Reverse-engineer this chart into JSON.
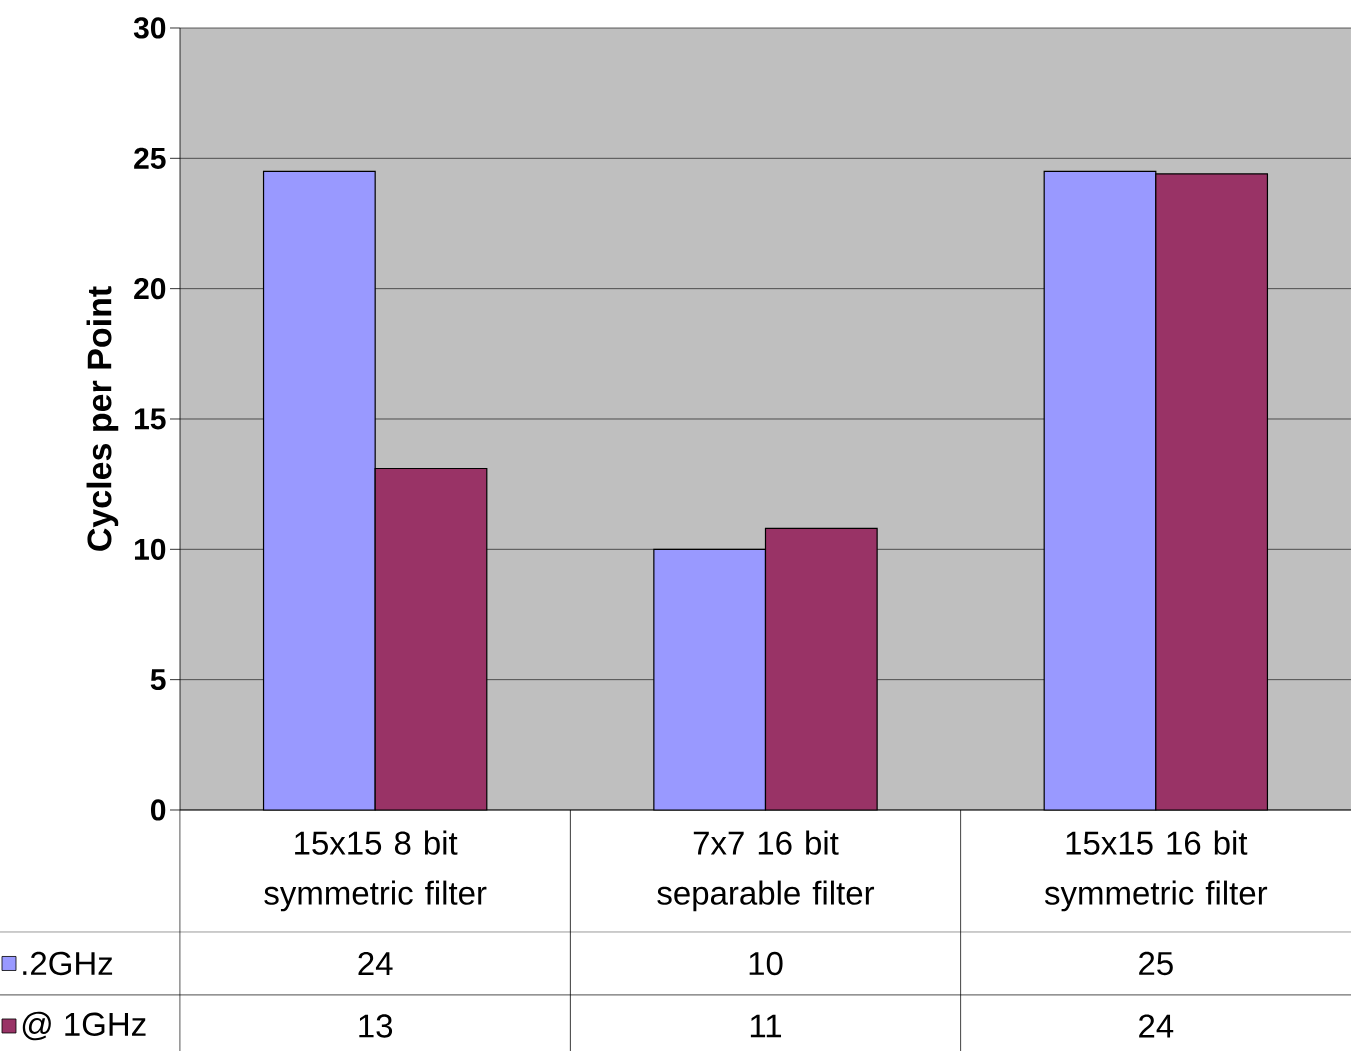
{
  "chart_data": {
    "type": "bar",
    "ylabel": "Cycles per Point",
    "categories": [
      "15x15 8 bit symmetric filter",
      "7x7 16 bit separable filter",
      "15x15 16 bit symmetric filter"
    ],
    "series": [
      {
        "name": ".2GHz",
        "color": "#9999ff",
        "values": [
          24.5,
          10.0,
          24.5
        ],
        "value_labels": [
          "24",
          "10",
          "25"
        ]
      },
      {
        "name": "@ 1GHz",
        "color": "#993366",
        "values": [
          13.1,
          10.8,
          24.4
        ],
        "value_labels": [
          "13",
          "11",
          "24"
        ]
      }
    ],
    "ylim": [
      0,
      30
    ],
    "yticks": [
      0,
      5,
      10,
      15,
      20,
      25,
      30
    ],
    "grid": "y",
    "legend": "bottom left"
  }
}
